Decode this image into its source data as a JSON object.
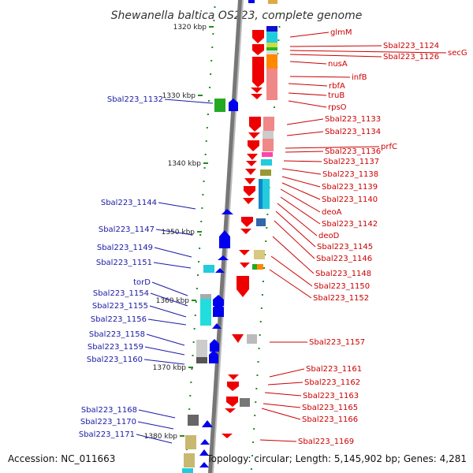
{
  "title": "Shewanella baltica OS223, complete genome",
  "footer": {
    "accession": "Accession: NC_011663",
    "summary": "Topology: circular; Length: 5,145,902 bp; Genes: 4,281"
  },
  "colors": {
    "reverse_strand": "#0000ee",
    "forward_strand": "#ee0000",
    "left_label": "#1a1aa6",
    "right_label": "#cc0000",
    "tick": "#228b22"
  },
  "ticks": [
    {
      "label": "1320 kbp"
    },
    {
      "label": "1330 kbp"
    },
    {
      "label": "1340 kbp"
    },
    {
      "label": "1350 kbp"
    },
    {
      "label": "1360 kbp"
    },
    {
      "label": "1370 kbp"
    },
    {
      "label": "1380 kbp"
    }
  ],
  "left_labels": [
    "Sbal223_1132",
    "Sbal223_1144",
    "Sbal223_1147",
    "Sbal223_1149",
    "Sbal223_1151",
    "torD",
    "Sbal223_1154",
    "Sbal223_1155",
    "Sbal223_1156",
    "Sbal223_1158",
    "Sbal223_1159",
    "Sbal223_1160",
    "Sbal223_1168",
    "Sbal223_1170",
    "Sbal223_1171"
  ],
  "right_labels": [
    "glmM",
    "Sbal223_1124",
    "secG",
    "Sbal223_1126",
    "nusA",
    "infB",
    "rbfA",
    "truB",
    "rpsO",
    "Sbal223_1133",
    "Sbal223_1134",
    "prfC",
    "Sbal223_1136",
    "Sbal223_1137",
    "Sbal223_1138",
    "Sbal223_1139",
    "Sbal223_1140",
    "deoA",
    "Sbal223_1142",
    "deoD",
    "Sbal223_1145",
    "Sbal223_1146",
    "Sbal223_1148",
    "Sbal223_1150",
    "Sbal223_1152",
    "Sbal223_1157",
    "Sbal223_1161",
    "Sbal223_1162",
    "Sbal223_1163",
    "Sbal223_1165",
    "Sbal223_1166",
    "Sbal223_1169"
  ]
}
